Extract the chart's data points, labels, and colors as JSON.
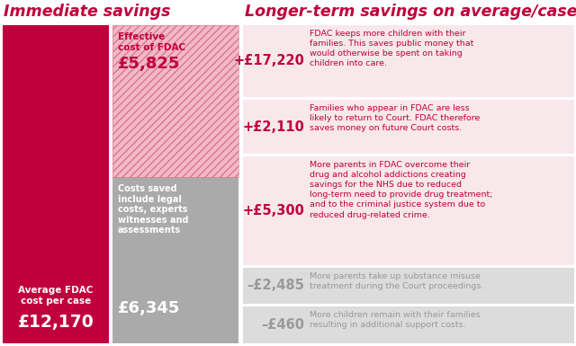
{
  "bg_color": "#ffffff",
  "title_left": "Immediate savings",
  "title_right": "Longer-term savings on average/case",
  "title_color": "#c0003c",
  "left_bar_color": "#c0003c",
  "left_bar_label1": "Average FDAC\ncost per case",
  "left_bar_value1": "£12,170",
  "right_top_hatch_facecolor": "#f2b8c6",
  "right_top_hatch_edgecolor": "#d9788a",
  "right_top_label": "Effective\ncost of FDAC",
  "right_top_value": "£5,825",
  "right_top_value_color": "#c0003c",
  "right_bottom_color": "#aaaaaa",
  "right_bottom_label": "Costs saved\ninclude legal\ncosts, experts\nwitnesses and\nassessments",
  "right_bottom_value": "£6,345",
  "total_cost": 12170,
  "effective_cost": 5825,
  "saved_cost": 6345,
  "rows": [
    {
      "value": "+£17,220",
      "desc": "FDAC keeps more children with their\nfamilies. This saves public money that\nwould otherwise be spent on taking\nchildren into care.",
      "bg": "#f8e8ec",
      "value_color": "#c0003c",
      "desc_color": "#c0003c"
    },
    {
      "value": "+£2,110",
      "desc": "Families who appear in FDAC are less\nlikely to return to Court. FDAC therefore\nsaves money on future Court costs.",
      "bg": "#f8e8ec",
      "value_color": "#c0003c",
      "desc_color": "#c0003c"
    },
    {
      "value": "+£5,300",
      "desc": "More parents in FDAC overcome their\ndrug and alcohol addictions creating\nsavings for the NHS due to reduced\nlong-term need to provide drug treatment;\nand to the criminal justice system due to\nreduced drug-related crime.",
      "bg": "#f8e8ec",
      "value_color": "#c0003c",
      "desc_color": "#c0003c"
    },
    {
      "value": "–£2,485",
      "desc": "More parents take up substance misuse\ntreatment during the Court proceedings.",
      "bg": "#dcdcdc",
      "value_color": "#999999",
      "desc_color": "#999999"
    },
    {
      "value": "–£460",
      "desc": "More children remain with their families\nresulting in additional support costs.",
      "bg": "#dcdcdc",
      "value_color": "#999999",
      "desc_color": "#999999"
    }
  ]
}
